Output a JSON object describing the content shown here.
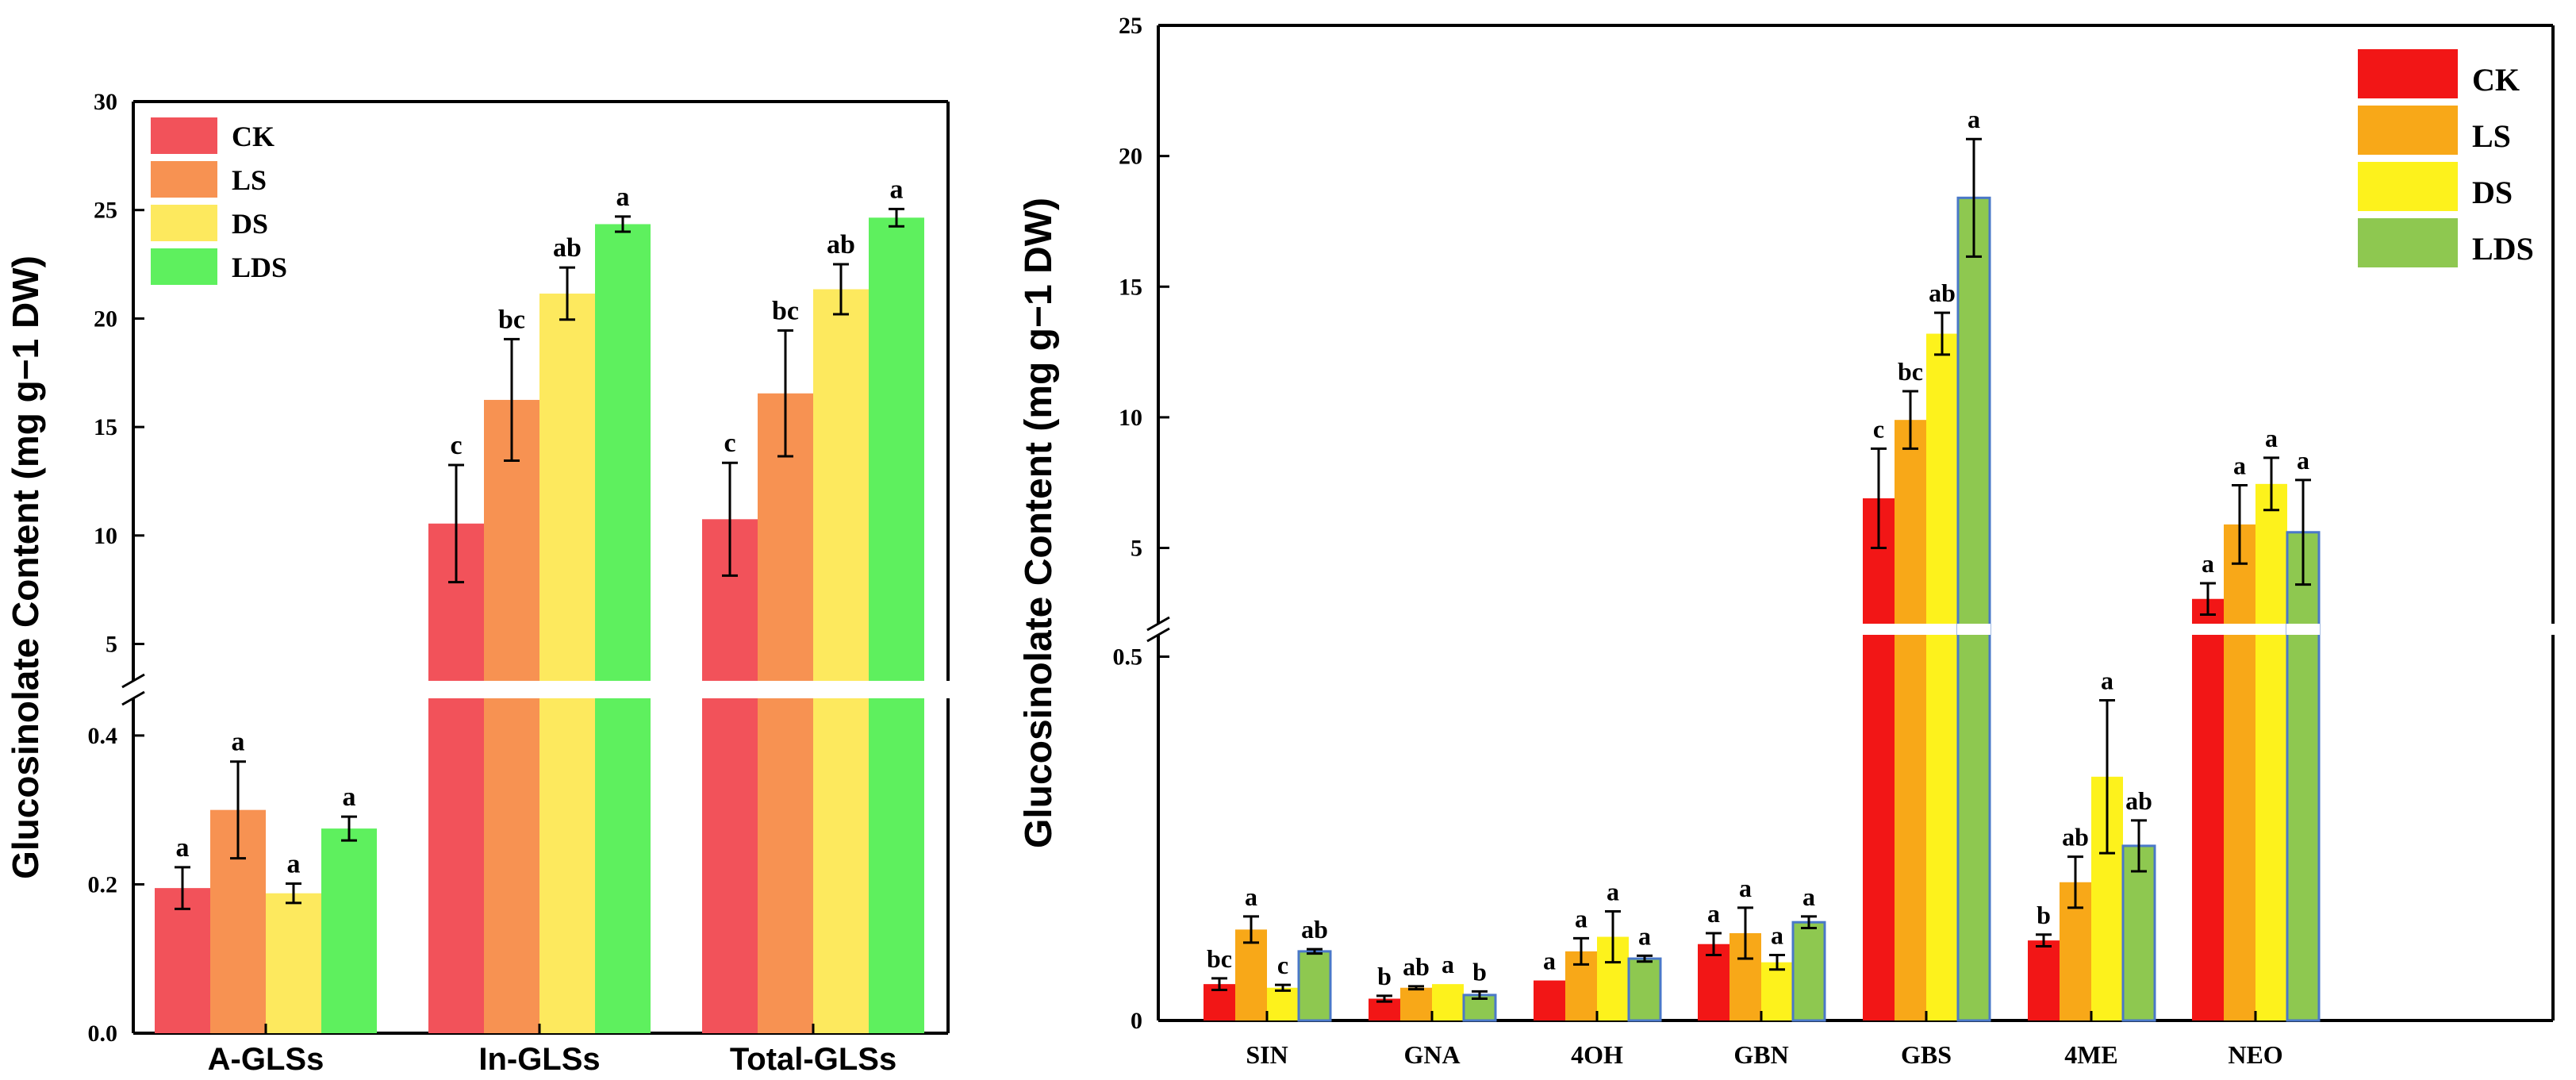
{
  "chart_data": [
    {
      "type": "bar",
      "panel": "left",
      "ylabel": "Glucosinolate Content (mg g−1 DW)",
      "categories": [
        "A-GLSs",
        "In-GLSs",
        "Total-GLSs"
      ],
      "y_axis_broken": true,
      "lower_segment": {
        "ylim": [
          0,
          0.45
        ],
        "ticks": [
          "0.0",
          "0.2",
          "0.4"
        ]
      },
      "upper_segment": {
        "ylim": [
          3.3,
          30
        ],
        "ticks": [
          "5",
          "10",
          "15",
          "20",
          "25",
          "30"
        ]
      },
      "legend": {
        "placement": "top-left",
        "entries": [
          "CK",
          "LS",
          "DS",
          "LDS"
        ]
      },
      "colors": {
        "CK": "#f2525a",
        "LS": "#f79252",
        "DS": "#fde95e",
        "LDS": "#5ef05e"
      },
      "series": [
        {
          "name": "CK",
          "values": [
            0.195,
            10.55,
            10.75
          ],
          "errors": [
            0.028,
            2.7,
            2.6
          ],
          "letters": [
            "a",
            "c",
            "c"
          ]
        },
        {
          "name": "LS",
          "values": [
            0.3,
            16.25,
            16.55
          ],
          "errors": [
            0.065,
            2.8,
            2.9
          ],
          "letters": [
            "a",
            "bc",
            "bc"
          ]
        },
        {
          "name": "DS",
          "values": [
            0.188,
            21.15,
            21.35
          ],
          "errors": [
            0.013,
            1.2,
            1.15
          ],
          "letters": [
            "a",
            "ab",
            "ab"
          ]
        },
        {
          "name": "LDS",
          "values": [
            0.275,
            24.35,
            24.65
          ],
          "errors": [
            0.016,
            0.35,
            0.4
          ],
          "letters": [
            "a",
            "a",
            "a"
          ]
        }
      ]
    },
    {
      "type": "bar",
      "panel": "right",
      "ylabel": "Glucosinolate Content (mg g−1 DW)",
      "categories": [
        "SIN",
        "GNA",
        "4OH",
        "GBN",
        "GBS",
        "4ME",
        "NEO"
      ],
      "y_axis_broken": true,
      "lower_segment": {
        "ylim": [
          0,
          0.53
        ],
        "ticks": [
          "0",
          "0.5"
        ]
      },
      "upper_segment": {
        "ylim": [
          2.1,
          25
        ],
        "ticks": [
          "5",
          "10",
          "15",
          "20",
          "25"
        ]
      },
      "legend": {
        "placement": "top-right",
        "entries": [
          "CK",
          "LS",
          "DS",
          "LDS"
        ]
      },
      "colors": {
        "CK": "#f21616",
        "LS": "#f8a818",
        "DS": "#fdf21c",
        "LDS": "#8ec850"
      },
      "series": [
        {
          "name": "CK",
          "values": [
            0.05,
            0.03,
            0.055,
            0.105,
            6.9,
            0.11,
            3.05
          ],
          "errors": [
            0.008,
            0.004,
            0.0,
            0.015,
            1.9,
            0.008,
            0.6
          ],
          "letters": [
            "bc",
            "b",
            "a",
            "a",
            "c",
            "b",
            "a"
          ]
        },
        {
          "name": "LS",
          "values": [
            0.125,
            0.045,
            0.095,
            0.12,
            9.9,
            0.19,
            5.9
          ],
          "errors": [
            0.018,
            0.002,
            0.018,
            0.035,
            1.1,
            0.035,
            1.5
          ],
          "letters": [
            "a",
            "ab",
            "a",
            "a",
            "bc",
            "ab",
            "a"
          ]
        },
        {
          "name": "DS",
          "values": [
            0.045,
            0.05,
            0.115,
            0.08,
            13.2,
            0.335,
            7.45
          ],
          "errors": [
            0.004,
            0.0,
            0.035,
            0.01,
            0.8,
            0.105,
            1.0
          ],
          "letters": [
            "c",
            "a",
            "a",
            "a",
            "ab",
            "a",
            "a"
          ]
        },
        {
          "name": "LDS",
          "values": [
            0.095,
            0.035,
            0.085,
            0.135,
            18.4,
            0.24,
            5.6
          ],
          "errors": [
            0.003,
            0.005,
            0.004,
            0.008,
            2.25,
            0.035,
            2.0
          ],
          "letters": [
            "ab",
            "b",
            "a",
            "a",
            "a",
            "ab",
            "a"
          ]
        }
      ]
    }
  ]
}
